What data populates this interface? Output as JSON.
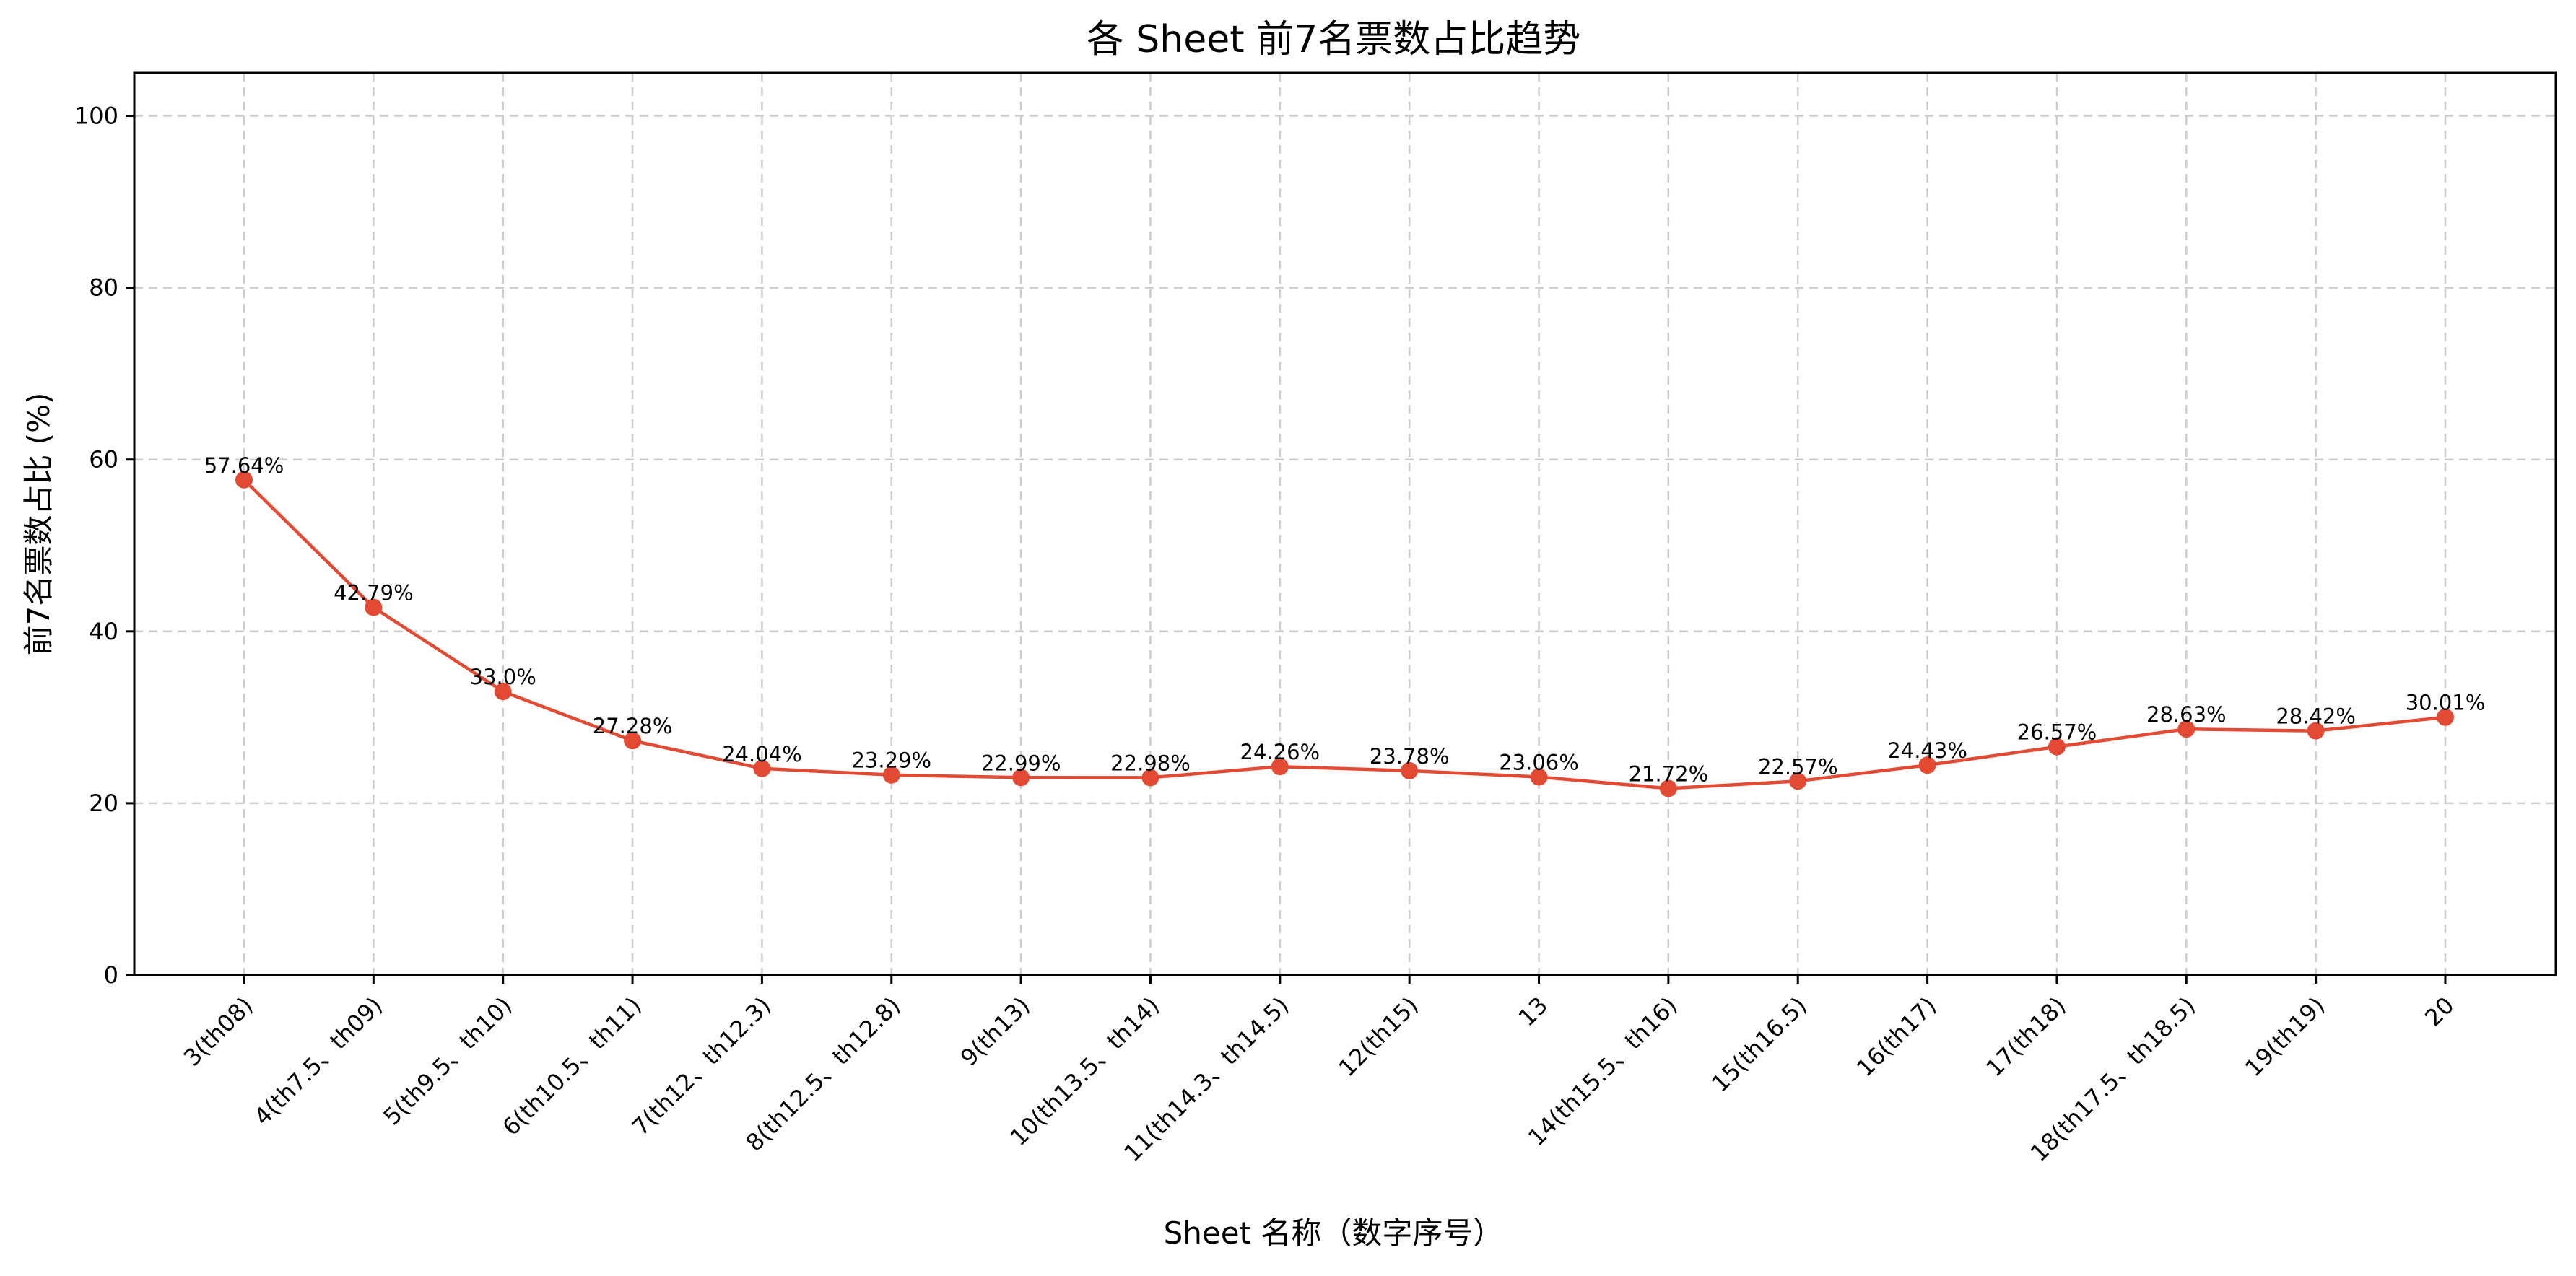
{
  "chart_data": {
    "type": "line",
    "title": "各 Sheet 前7名票数占比趋势",
    "xlabel": "Sheet 名称（数字序号）",
    "ylabel": "前7名票数占比 (%)",
    "ylim": [
      0,
      105
    ],
    "yticks": [
      "0",
      "20",
      "40",
      "60",
      "80",
      "100"
    ],
    "grid": true,
    "categories": [
      "3(th08)",
      "4(th7.5、th09)",
      "5(th9.5、th10)",
      "6(th10.5、th11)",
      "7(th12、th12.3)",
      "8(th12.5、th12.8)",
      "9(th13)",
      "10(th13.5、th14)",
      "11(th14.3、th14.5)",
      "12(th15)",
      "13",
      "14(th15.5、th16)",
      "15(th16.5)",
      "16(th17)",
      "17(th18)",
      "18(th17.5、th18.5)",
      "19(th19)",
      "20"
    ],
    "values": [
      57.64,
      42.79,
      33.0,
      27.28,
      24.04,
      23.29,
      22.99,
      22.98,
      24.26,
      23.78,
      23.06,
      21.72,
      22.57,
      24.43,
      26.57,
      28.63,
      28.42,
      30.01
    ],
    "data_labels": [
      "57.64%",
      "42.79%",
      "33.0%",
      "27.28%",
      "24.04%",
      "23.29%",
      "22.99%",
      "22.98%",
      "24.26%",
      "23.78%",
      "23.06%",
      "21.72%",
      "22.57%",
      "24.43%",
      "26.57%",
      "28.63%",
      "28.42%",
      "30.01%"
    ],
    "colors": {
      "line": "#e24a33",
      "marker": "#e24a33",
      "grid": "#cccccc"
    }
  }
}
